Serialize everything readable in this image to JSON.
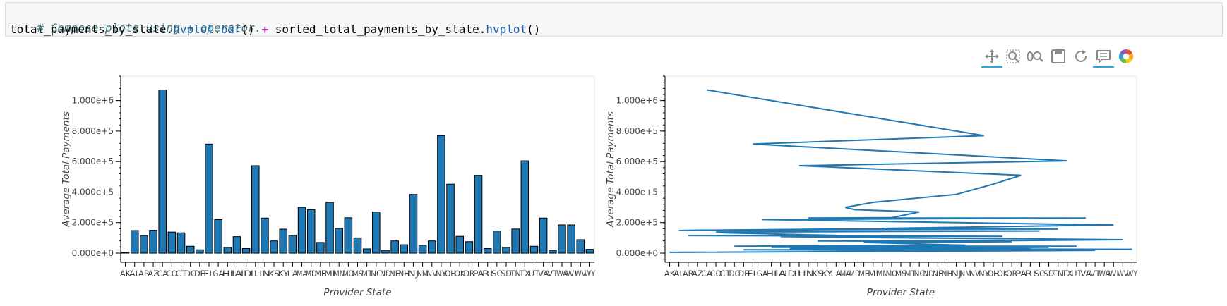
{
  "code": {
    "comment": "# Compose plots using + operator.",
    "line2": [
      {
        "t": "total_payments_by_state",
        "c": ""
      },
      {
        "t": ".",
        "c": ""
      },
      {
        "t": "hvplot",
        "c": "tok-attr"
      },
      {
        "t": ".",
        "c": ""
      },
      {
        "t": "bar",
        "c": "tok-attr"
      },
      {
        "t": "() ",
        "c": ""
      },
      {
        "t": "+",
        "c": "tok-op"
      },
      {
        "t": " sorted_total_payments_by_state",
        "c": ""
      },
      {
        "t": ".",
        "c": ""
      },
      {
        "t": "hvplot",
        "c": "tok-attr"
      },
      {
        "t": "()",
        "c": ""
      }
    ]
  },
  "toolbar": {
    "tools": [
      {
        "icon": "pan-icon",
        "active": true
      },
      {
        "icon": "box-zoom-icon",
        "active": false
      },
      {
        "icon": "wheel-zoom-icon",
        "active": false
      },
      {
        "icon": "save-icon",
        "active": false
      },
      {
        "icon": "reset-icon",
        "active": false
      },
      {
        "icon": "hover-icon",
        "active": true
      },
      {
        "icon": "bokeh-logo-icon",
        "active": false
      }
    ]
  },
  "chart_data": [
    {
      "type": "bar",
      "xlabel": "Provider State",
      "ylabel": "Average Total Payments",
      "ylim": [
        -60000,
        1160000
      ],
      "yticks": [
        "0.000e+0",
        "2.000e+5",
        "4.000e+5",
        "6.000e+5",
        "8.000e+5",
        "1.000e+6"
      ],
      "ytick_values": [
        0,
        200000,
        400000,
        600000,
        800000,
        1000000
      ],
      "color": "#1f77b4",
      "categories": [
        "AK",
        "AL",
        "AR",
        "AZ",
        "CA",
        "CO",
        "CT",
        "DC",
        "DE",
        "FL",
        "GA",
        "HI",
        "IA",
        "ID",
        "IL",
        "IN",
        "KS",
        "KY",
        "LA",
        "MA",
        "MD",
        "ME",
        "MI",
        "MN",
        "MO",
        "MS",
        "MT",
        "NC",
        "ND",
        "NE",
        "NH",
        "NJ",
        "NM",
        "NV",
        "NY",
        "OH",
        "OK",
        "OR",
        "PA",
        "RI",
        "SC",
        "SD",
        "TN",
        "TX",
        "UT",
        "VA",
        "VT",
        "WA",
        "WI",
        "WV",
        "WY"
      ],
      "values": [
        5000,
        148000,
        115000,
        150000,
        1070000,
        138000,
        133000,
        45000,
        22000,
        715000,
        220000,
        38000,
        108000,
        30000,
        573000,
        230000,
        80000,
        157000,
        116000,
        300000,
        285000,
        70000,
        333000,
        162000,
        232000,
        100000,
        28000,
        270000,
        18000,
        80000,
        55000,
        385000,
        52000,
        80000,
        770000,
        452000,
        110000,
        75000,
        510000,
        30000,
        145000,
        38000,
        158000,
        605000,
        45000,
        230000,
        18000,
        185000,
        185000,
        88000,
        25000
      ]
    },
    {
      "type": "line",
      "xlabel": "Provider State",
      "ylabel": "Average Total Payments",
      "ylim": [
        -60000,
        1160000
      ],
      "yticks": [
        "0.000e+0",
        "2.000e+5",
        "4.000e+5",
        "6.000e+5",
        "8.000e+5",
        "1.000e+6"
      ],
      "ytick_values": [
        0,
        200000,
        400000,
        600000,
        800000,
        1000000
      ],
      "color": "#1f77b4",
      "categories": [
        "AK",
        "AL",
        "AR",
        "AZ",
        "CA",
        "CO",
        "CT",
        "DC",
        "DE",
        "FL",
        "GA",
        "HI",
        "IA",
        "ID",
        "IL",
        "IN",
        "KS",
        "KY",
        "LA",
        "MA",
        "MD",
        "ME",
        "MI",
        "MN",
        "MO",
        "MS",
        "MT",
        "NC",
        "ND",
        "NE",
        "NH",
        "NJ",
        "NM",
        "NV",
        "NY",
        "OH",
        "OK",
        "OR",
        "PA",
        "RI",
        "SC",
        "SD",
        "TN",
        "TX",
        "UT",
        "VA",
        "VT",
        "WA",
        "WI",
        "WV",
        "WY"
      ],
      "points": [
        {
          "x": "CA",
          "y": 1070000
        },
        {
          "x": "NY",
          "y": 770000
        },
        {
          "x": "FL",
          "y": 715000
        },
        {
          "x": "TX",
          "y": 605000
        },
        {
          "x": "IL",
          "y": 573000
        },
        {
          "x": "PA",
          "y": 510000
        },
        {
          "x": "OH",
          "y": 452000
        },
        {
          "x": "NJ",
          "y": 385000
        },
        {
          "x": "MI",
          "y": 333000
        },
        {
          "x": "MA",
          "y": 300000
        },
        {
          "x": "MD",
          "y": 285000
        },
        {
          "x": "NC",
          "y": 270000
        },
        {
          "x": "MO",
          "y": 232000
        },
        {
          "x": "IN",
          "y": 230000
        },
        {
          "x": "VA",
          "y": 230000
        },
        {
          "x": "GA",
          "y": 220000
        },
        {
          "x": "WA",
          "y": 185000
        },
        {
          "x": "WI",
          "y": 185000
        },
        {
          "x": "MN",
          "y": 162000
        },
        {
          "x": "TN",
          "y": 158000
        },
        {
          "x": "KY",
          "y": 157000
        },
        {
          "x": "AZ",
          "y": 150000
        },
        {
          "x": "AL",
          "y": 148000
        },
        {
          "x": "SC",
          "y": 145000
        },
        {
          "x": "CO",
          "y": 138000
        },
        {
          "x": "CT",
          "y": 133000
        },
        {
          "x": "LA",
          "y": 116000
        },
        {
          "x": "AR",
          "y": 115000
        },
        {
          "x": "OK",
          "y": 110000
        },
        {
          "x": "IA",
          "y": 108000
        },
        {
          "x": "MS",
          "y": 100000
        },
        {
          "x": "WV",
          "y": 88000
        },
        {
          "x": "NV",
          "y": 80000
        },
        {
          "x": "NE",
          "y": 80000
        },
        {
          "x": "KS",
          "y": 80000
        },
        {
          "x": "OR",
          "y": 75000
        },
        {
          "x": "ME",
          "y": 70000
        },
        {
          "x": "NH",
          "y": 55000
        },
        {
          "x": "NM",
          "y": 52000
        },
        {
          "x": "DC",
          "y": 45000
        },
        {
          "x": "UT",
          "y": 45000
        },
        {
          "x": "HI",
          "y": 38000
        },
        {
          "x": "SD",
          "y": 38000
        },
        {
          "x": "ID",
          "y": 30000
        },
        {
          "x": "RI",
          "y": 30000
        },
        {
          "x": "MT",
          "y": 28000
        },
        {
          "x": "WY",
          "y": 25000
        },
        {
          "x": "DE",
          "y": 22000
        },
        {
          "x": "ND",
          "y": 18000
        },
        {
          "x": "VT",
          "y": 18000
        },
        {
          "x": "AK",
          "y": 5000
        }
      ]
    }
  ]
}
